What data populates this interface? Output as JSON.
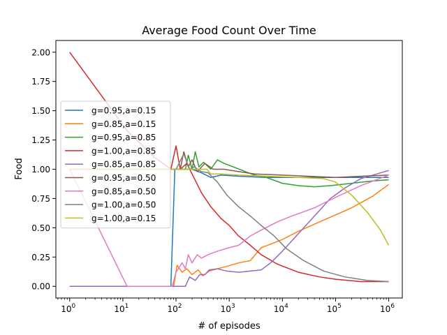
{
  "chart_data": {
    "type": "line",
    "title": "Average Food Count Over Time",
    "xlabel": "# of episodes",
    "ylabel": "Food",
    "xscale": "log",
    "xlim": [
      0.55,
      1800000
    ],
    "ylim": [
      -0.1,
      2.1
    ],
    "grid": false,
    "legend_position": "center-left",
    "x_ticks": [
      {
        "value": 1,
        "base": "10",
        "exp": "0"
      },
      {
        "value": 10,
        "base": "10",
        "exp": "1"
      },
      {
        "value": 100,
        "base": "10",
        "exp": "2"
      },
      {
        "value": 1000,
        "base": "10",
        "exp": "3"
      },
      {
        "value": 10000,
        "base": "10",
        "exp": "4"
      },
      {
        "value": 100000,
        "base": "10",
        "exp": "5"
      },
      {
        "value": 1000000,
        "base": "10",
        "exp": "6"
      }
    ],
    "y_ticks": [
      {
        "value": 0.0,
        "label": "0.00"
      },
      {
        "value": 0.25,
        "label": "0.25"
      },
      {
        "value": 0.5,
        "label": "0.50"
      },
      {
        "value": 0.75,
        "label": "0.75"
      },
      {
        "value": 1.0,
        "label": "1.00"
      },
      {
        "value": 1.25,
        "label": "1.25"
      },
      {
        "value": 1.5,
        "label": "1.50"
      },
      {
        "value": 1.75,
        "label": "1.75"
      },
      {
        "value": 2.0,
        "label": "2.00"
      }
    ],
    "series": [
      {
        "name": "g=0.95,a=0.15",
        "color": "#1f77b4",
        "points": [
          [
            1,
            0
          ],
          [
            12,
            0
          ],
          [
            80,
            0
          ],
          [
            95,
            1.0
          ],
          [
            200,
            1.0
          ],
          [
            300,
            0.97
          ],
          [
            450,
            0.93
          ],
          [
            700,
            0.95
          ],
          [
            1500,
            0.94
          ],
          [
            5000,
            0.93
          ],
          [
            20000,
            0.93
          ],
          [
            100000,
            0.93
          ],
          [
            1000000,
            0.93
          ]
        ]
      },
      {
        "name": "g=0.85,a=0.15",
        "color": "#ff7f0e",
        "points": [
          [
            1,
            0
          ],
          [
            90,
            0
          ],
          [
            105,
            0.18
          ],
          [
            130,
            0.12
          ],
          [
            160,
            0.15
          ],
          [
            200,
            0.1
          ],
          [
            260,
            0.14
          ],
          [
            320,
            0.09
          ],
          [
            420,
            0.13
          ],
          [
            600,
            0.15
          ],
          [
            900,
            0.17
          ],
          [
            1500,
            0.2
          ],
          [
            2500,
            0.22
          ],
          [
            4000,
            0.33
          ],
          [
            6000,
            0.36
          ],
          [
            10000,
            0.4
          ],
          [
            20000,
            0.47
          ],
          [
            50000,
            0.55
          ],
          [
            100000,
            0.61
          ],
          [
            200000,
            0.67
          ],
          [
            500000,
            0.77
          ],
          [
            1000000,
            0.87
          ]
        ]
      },
      {
        "name": "g=0.95,a=0.85",
        "color": "#2ca02c",
        "points": [
          [
            1,
            1.0
          ],
          [
            150,
            1.0
          ],
          [
            170,
            1.12
          ],
          [
            200,
            1.0
          ],
          [
            230,
            1.15
          ],
          [
            270,
            1.02
          ],
          [
            330,
            1.06
          ],
          [
            450,
            1.0
          ],
          [
            600,
            1.08
          ],
          [
            800,
            1.05
          ],
          [
            1200,
            1.02
          ],
          [
            2000,
            0.98
          ],
          [
            3000,
            0.95
          ],
          [
            5000,
            0.93
          ],
          [
            10000,
            0.88
          ],
          [
            20000,
            0.86
          ],
          [
            40000,
            0.85
          ],
          [
            80000,
            0.86
          ],
          [
            200000,
            0.88
          ],
          [
            500000,
            0.9
          ],
          [
            1000000,
            0.91
          ]
        ]
      },
      {
        "name": "g=1.00,a=0.85",
        "color": "#d62728",
        "points": [
          [
            1,
            2.0
          ],
          [
            12,
            1.33
          ],
          [
            40,
            1.1
          ],
          [
            80,
            1.0
          ],
          [
            100,
            1.2
          ],
          [
            120,
            1.0
          ],
          [
            160,
            1.05
          ],
          [
            200,
            0.96
          ],
          [
            300,
            0.8
          ],
          [
            450,
            0.68
          ],
          [
            700,
            0.58
          ],
          [
            1000,
            0.52
          ],
          [
            1500,
            0.43
          ],
          [
            2500,
            0.35
          ],
          [
            4000,
            0.27
          ],
          [
            8000,
            0.19
          ],
          [
            20000,
            0.12
          ],
          [
            50000,
            0.08
          ],
          [
            100000,
            0.06
          ],
          [
            300000,
            0.04
          ],
          [
            1000000,
            0.04
          ]
        ]
      },
      {
        "name": "g=0.85,a=0.85",
        "color": "#9467bd",
        "points": [
          [
            1,
            0
          ],
          [
            150,
            0
          ],
          [
            180,
            0.08
          ],
          [
            230,
            0.05
          ],
          [
            280,
            0.1
          ],
          [
            350,
            0.1
          ],
          [
            420,
            0.14
          ],
          [
            600,
            0.15
          ],
          [
            900,
            0.13
          ],
          [
            1500,
            0.12
          ],
          [
            2500,
            0.13
          ],
          [
            4000,
            0.14
          ],
          [
            6000,
            0.2
          ],
          [
            10000,
            0.3
          ],
          [
            20000,
            0.45
          ],
          [
            40000,
            0.6
          ],
          [
            80000,
            0.75
          ],
          [
            150000,
            0.84
          ],
          [
            300000,
            0.92
          ],
          [
            600000,
            0.96
          ],
          [
            1000000,
            0.99
          ]
        ]
      },
      {
        "name": "g=0.95,a=0.50",
        "color": "#8c564b",
        "points": [
          [
            1,
            1.0
          ],
          [
            120,
            1.0
          ],
          [
            140,
            1.15
          ],
          [
            170,
            1.02
          ],
          [
            200,
            1.08
          ],
          [
            250,
            0.98
          ],
          [
            350,
            1.05
          ],
          [
            500,
            1.0
          ],
          [
            800,
            1.0
          ],
          [
            1500,
            0.98
          ],
          [
            3000,
            0.96
          ],
          [
            10000,
            0.95
          ],
          [
            30000,
            0.94
          ],
          [
            100000,
            0.93
          ],
          [
            300000,
            0.94
          ],
          [
            1000000,
            0.95
          ]
        ]
      },
      {
        "name": "g=0.85,a=0.50",
        "color": "#e377c2",
        "points": [
          [
            1,
            1.0
          ],
          [
            12,
            0
          ],
          [
            85,
            0
          ],
          [
            100,
            0.12
          ],
          [
            130,
            0.2
          ],
          [
            150,
            0.15
          ],
          [
            170,
            0.27
          ],
          [
            200,
            0.2
          ],
          [
            250,
            0.27
          ],
          [
            300,
            0.24
          ],
          [
            400,
            0.27
          ],
          [
            600,
            0.3
          ],
          [
            1000,
            0.33
          ],
          [
            1500,
            0.35
          ],
          [
            2500,
            0.43
          ],
          [
            4000,
            0.48
          ],
          [
            8000,
            0.55
          ],
          [
            15000,
            0.6
          ],
          [
            40000,
            0.67
          ],
          [
            100000,
            0.76
          ],
          [
            300000,
            0.86
          ],
          [
            1000000,
            0.95
          ]
        ]
      },
      {
        "name": "g=1.00,a=0.50",
        "color": "#7f7f7f",
        "points": [
          [
            1,
            1.0
          ],
          [
            100,
            1.0
          ],
          [
            140,
            1.13
          ],
          [
            180,
            1.0
          ],
          [
            220,
            1.02
          ],
          [
            300,
            0.98
          ],
          [
            400,
            0.97
          ],
          [
            600,
            0.89
          ],
          [
            900,
            0.78
          ],
          [
            1500,
            0.68
          ],
          [
            2500,
            0.6
          ],
          [
            4000,
            0.52
          ],
          [
            7000,
            0.43
          ],
          [
            12000,
            0.32
          ],
          [
            25000,
            0.22
          ],
          [
            60000,
            0.13
          ],
          [
            150000,
            0.08
          ],
          [
            400000,
            0.05
          ],
          [
            1000000,
            0.04
          ]
        ]
      },
      {
        "name": "g=1.00,a=0.15",
        "color": "#bcbd22",
        "points": [
          [
            1,
            1.0
          ],
          [
            300,
            1.0
          ],
          [
            380,
            1.0
          ],
          [
            450,
            0.96
          ],
          [
            700,
            0.96
          ],
          [
            1500,
            0.95
          ],
          [
            5000,
            0.94
          ],
          [
            20000,
            0.93
          ],
          [
            60000,
            0.92
          ],
          [
            100000,
            0.89
          ],
          [
            200000,
            0.78
          ],
          [
            400000,
            0.63
          ],
          [
            700000,
            0.48
          ],
          [
            1000000,
            0.35
          ]
        ]
      }
    ]
  }
}
